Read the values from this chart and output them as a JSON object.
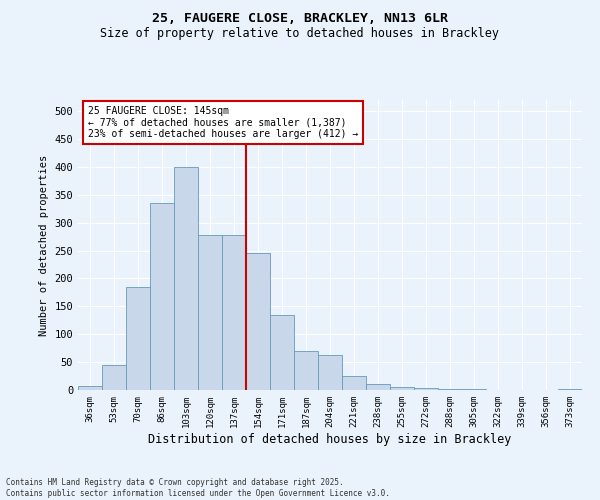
{
  "title": "25, FAUGERE CLOSE, BRACKLEY, NN13 6LR",
  "subtitle": "Size of property relative to detached houses in Brackley",
  "xlabel": "Distribution of detached houses by size in Brackley",
  "ylabel": "Number of detached properties",
  "categories": [
    "36sqm",
    "53sqm",
    "70sqm",
    "86sqm",
    "103sqm",
    "120sqm",
    "137sqm",
    "154sqm",
    "171sqm",
    "187sqm",
    "204sqm",
    "221sqm",
    "238sqm",
    "255sqm",
    "272sqm",
    "288sqm",
    "305sqm",
    "322sqm",
    "339sqm",
    "356sqm",
    "373sqm"
  ],
  "bar_heights": [
    7,
    45,
    185,
    335,
    400,
    278,
    278,
    245,
    135,
    70,
    63,
    25,
    10,
    5,
    3,
    1,
    1,
    0,
    0,
    0,
    1
  ],
  "bar_color": "#c8d8ea",
  "bar_edge_color": "#6699bb",
  "vline_color": "#cc0000",
  "annotation_text": "25 FAUGERE CLOSE: 145sqm\n← 77% of detached houses are smaller (1,387)\n23% of semi-detached houses are larger (412) →",
  "annotation_box_color": "#ffffff",
  "annotation_box_edge": "#cc0000",
  "ylim": [
    0,
    520
  ],
  "yticks": [
    0,
    50,
    100,
    150,
    200,
    250,
    300,
    350,
    400,
    450,
    500
  ],
  "background_color": "#eaf2fb",
  "grid_color": "#ffffff",
  "footer_text": "Contains HM Land Registry data © Crown copyright and database right 2025.\nContains public sector information licensed under the Open Government Licence v3.0."
}
